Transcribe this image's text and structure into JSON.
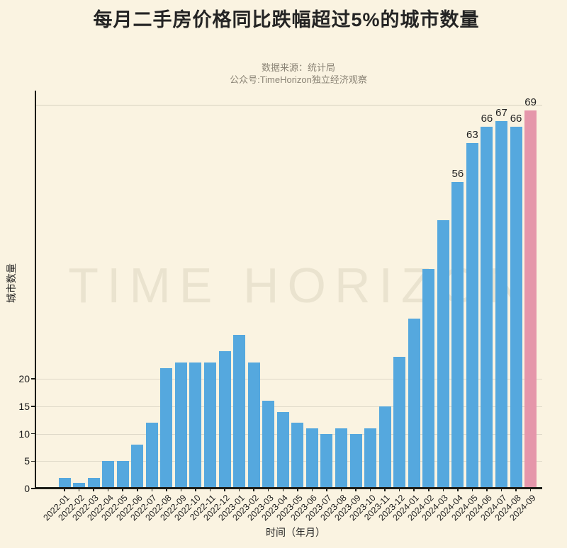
{
  "page": {
    "background": "#faf3e1"
  },
  "header": {
    "title": "每月二手房价格同比跌幅超过5%的城市数量",
    "source_line": "数据来源：统计局",
    "account_line": "公众号:TimeHorizon独立经济观察"
  },
  "watermark": "TIME HORIZON",
  "chart_data": {
    "type": "bar",
    "title": "每月二手房价格同比跌幅超过5%的城市数量",
    "xlabel": "时间（年月）",
    "ylabel": "城市数量",
    "categories": [
      "2022-01",
      "2022-02",
      "2022-03",
      "2022-04",
      "2022-05",
      "2022-06",
      "2022-07",
      "2022-08",
      "2022-09",
      "2022-10",
      "2022-11",
      "2022-12",
      "2023-01",
      "2023-02",
      "2023-03",
      "2023-04",
      "2023-05",
      "2023-06",
      "2023-07",
      "2023-08",
      "2023-09",
      "2023-10",
      "2023-11",
      "2023-12",
      "2024-01",
      "2024-02",
      "2024-03",
      "2024-04",
      "2024-05",
      "2024-06",
      "2024-07",
      "2024-08",
      "2024-09"
    ],
    "values": [
      2,
      1,
      2,
      5,
      5,
      8,
      12,
      22,
      23,
      23,
      23,
      25,
      28,
      23,
      16,
      14,
      12,
      11,
      10,
      11,
      10,
      11,
      15,
      24,
      31,
      40,
      49,
      56,
      63,
      66,
      67,
      66,
      69
    ],
    "value_labels": [
      {
        "index": 27,
        "text": "56"
      },
      {
        "index": 28,
        "text": "63"
      },
      {
        "index": 29,
        "text": "66"
      },
      {
        "index": 30,
        "text": "67"
      },
      {
        "index": 31,
        "text": "66"
      },
      {
        "index": 32,
        "text": "69"
      }
    ],
    "yticks": [
      0,
      5,
      10,
      15,
      20
    ],
    "ylim": [
      0,
      72.5
    ],
    "reference_line_y": 70,
    "grid": true,
    "legend": "none",
    "bar_color": "#55a8de",
    "highlight_color": "#e596aa",
    "highlight_index": 32
  }
}
